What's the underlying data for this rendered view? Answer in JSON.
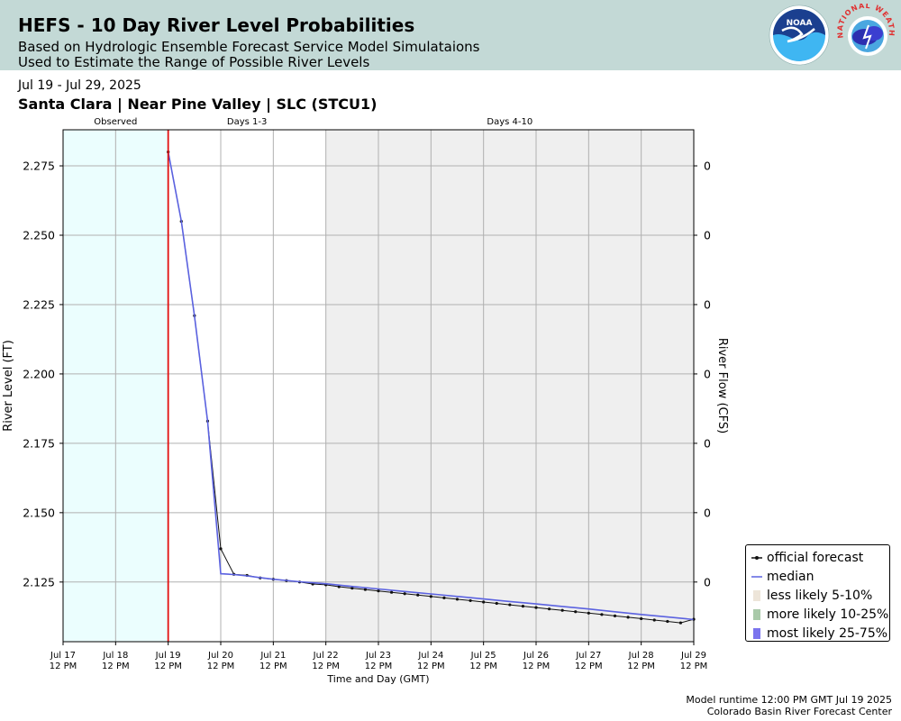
{
  "header": {
    "title": "HEFS - 10 Day River Level Probabilities",
    "subtitle_line1": "Based on Hydrologic Ensemble Forecast Service Model Simulataions",
    "subtitle_line2": "Used to Estimate the Range of Possible River Levels",
    "noaa_logo_text": "NOAA",
    "nws_logo_text": "NATIONAL WEATHER SERVICE"
  },
  "date_range": "Jul 19 - Jul 29, 2025",
  "location": "Santa Clara | Near Pine Valley | SLC (STCU1)",
  "footer": {
    "runtime": "Model runtime 12:00 PM GMT Jul 19 2025",
    "center": "Colorado Basin River Forecast Center"
  },
  "colors": {
    "header_bg": "#c3d9d6",
    "observed_bg": "#ebfefe",
    "days_4_10_bg": "#efefef",
    "now_line": "#e01010",
    "median": "#5b62e0",
    "official": "#111111",
    "less_likely": "#ede5d9",
    "more_likely": "#a9c9a9",
    "most_likely": "#7b74ee"
  },
  "chart_data": {
    "type": "line",
    "period_labels": [
      {
        "label": "Observed",
        "x_start": 0,
        "x_end": 2
      },
      {
        "label": "Days 1-3",
        "x_start": 2,
        "x_end": 5
      },
      {
        "label": "Days 4-10",
        "x_start": 5,
        "x_end": 12
      }
    ],
    "x_ticks": [
      "Jul 17\n12 PM",
      "Jul 18\n12 PM",
      "Jul 19\n12 PM",
      "Jul 20\n12 PM",
      "Jul 21\n12 PM",
      "Jul 22\n12 PM",
      "Jul 23\n12 PM",
      "Jul 24\n12 PM",
      "Jul 25\n12 PM",
      "Jul 26\n12 PM",
      "Jul 27\n12 PM",
      "Jul 28\n12 PM",
      "Jul 29\n12 PM"
    ],
    "xlabel": "Time and Day (GMT)",
    "ylabel": "River Level (FT)",
    "y2label": "River Flow (CFS)",
    "ylim": [
      2.1035,
      2.288
    ],
    "y_ticks": [
      2.125,
      2.15,
      2.175,
      2.2,
      2.225,
      2.25,
      2.275
    ],
    "y_tick_labels": [
      "2.125",
      "2.150",
      "2.175",
      "2.200",
      "2.225",
      "2.250",
      "2.275"
    ],
    "y2_tick_labels": [
      "0",
      "0",
      "0",
      "0",
      "0",
      "0",
      "0"
    ],
    "now_x": 2,
    "grid": true,
    "series": [
      {
        "name": "official forecast",
        "x": [
          2,
          2.25,
          2.5,
          2.75,
          3,
          3.25,
          3.5,
          3.75,
          4,
          4.25,
          4.5,
          4.75,
          5,
          5.25,
          5.5,
          5.75,
          6,
          6.25,
          6.5,
          6.75,
          7,
          7.25,
          7.5,
          7.75,
          8,
          8.25,
          8.5,
          8.75,
          9,
          9.25,
          9.5,
          9.75,
          10,
          10.25,
          10.5,
          10.75,
          11,
          11.25,
          11.5,
          11.75,
          12
        ],
        "y": [
          2.28,
          2.255,
          2.221,
          2.183,
          2.137,
          2.1278,
          2.1274,
          2.1265,
          2.126,
          2.1255,
          2.125,
          2.1243,
          2.124,
          2.1233,
          2.1228,
          2.1223,
          2.1218,
          2.1213,
          2.1208,
          2.1203,
          2.1198,
          2.1193,
          2.1188,
          2.1183,
          2.1178,
          2.1173,
          2.1168,
          2.1163,
          2.1158,
          2.1153,
          2.1148,
          2.1143,
          2.1138,
          2.1133,
          2.1128,
          2.1123,
          2.1118,
          2.1113,
          2.1108,
          2.1103,
          2.1116
        ]
      },
      {
        "name": "median",
        "x": [
          2,
          2.25,
          2.5,
          2.75,
          3,
          3.25,
          3.5,
          3.75,
          4,
          4.5,
          5,
          5.5,
          6,
          6.5,
          7,
          7.5,
          8,
          8.5,
          9,
          9.5,
          10,
          10.5,
          11,
          11.5,
          12
        ],
        "y": [
          2.28,
          2.255,
          2.221,
          2.183,
          2.128,
          2.1277,
          2.1272,
          2.1266,
          2.126,
          2.1251,
          2.1244,
          2.1234,
          2.1225,
          2.1216,
          2.1207,
          2.1198,
          2.1189,
          2.118,
          2.1171,
          2.1162,
          2.1153,
          2.1143,
          2.1133,
          2.1124,
          2.1115
        ]
      }
    ],
    "legend": [
      "official forecast",
      "median",
      "less likely 5-10%",
      "more likely 10-25%",
      "most likely 25-75%"
    ],
    "legend_position": "lower-right"
  }
}
